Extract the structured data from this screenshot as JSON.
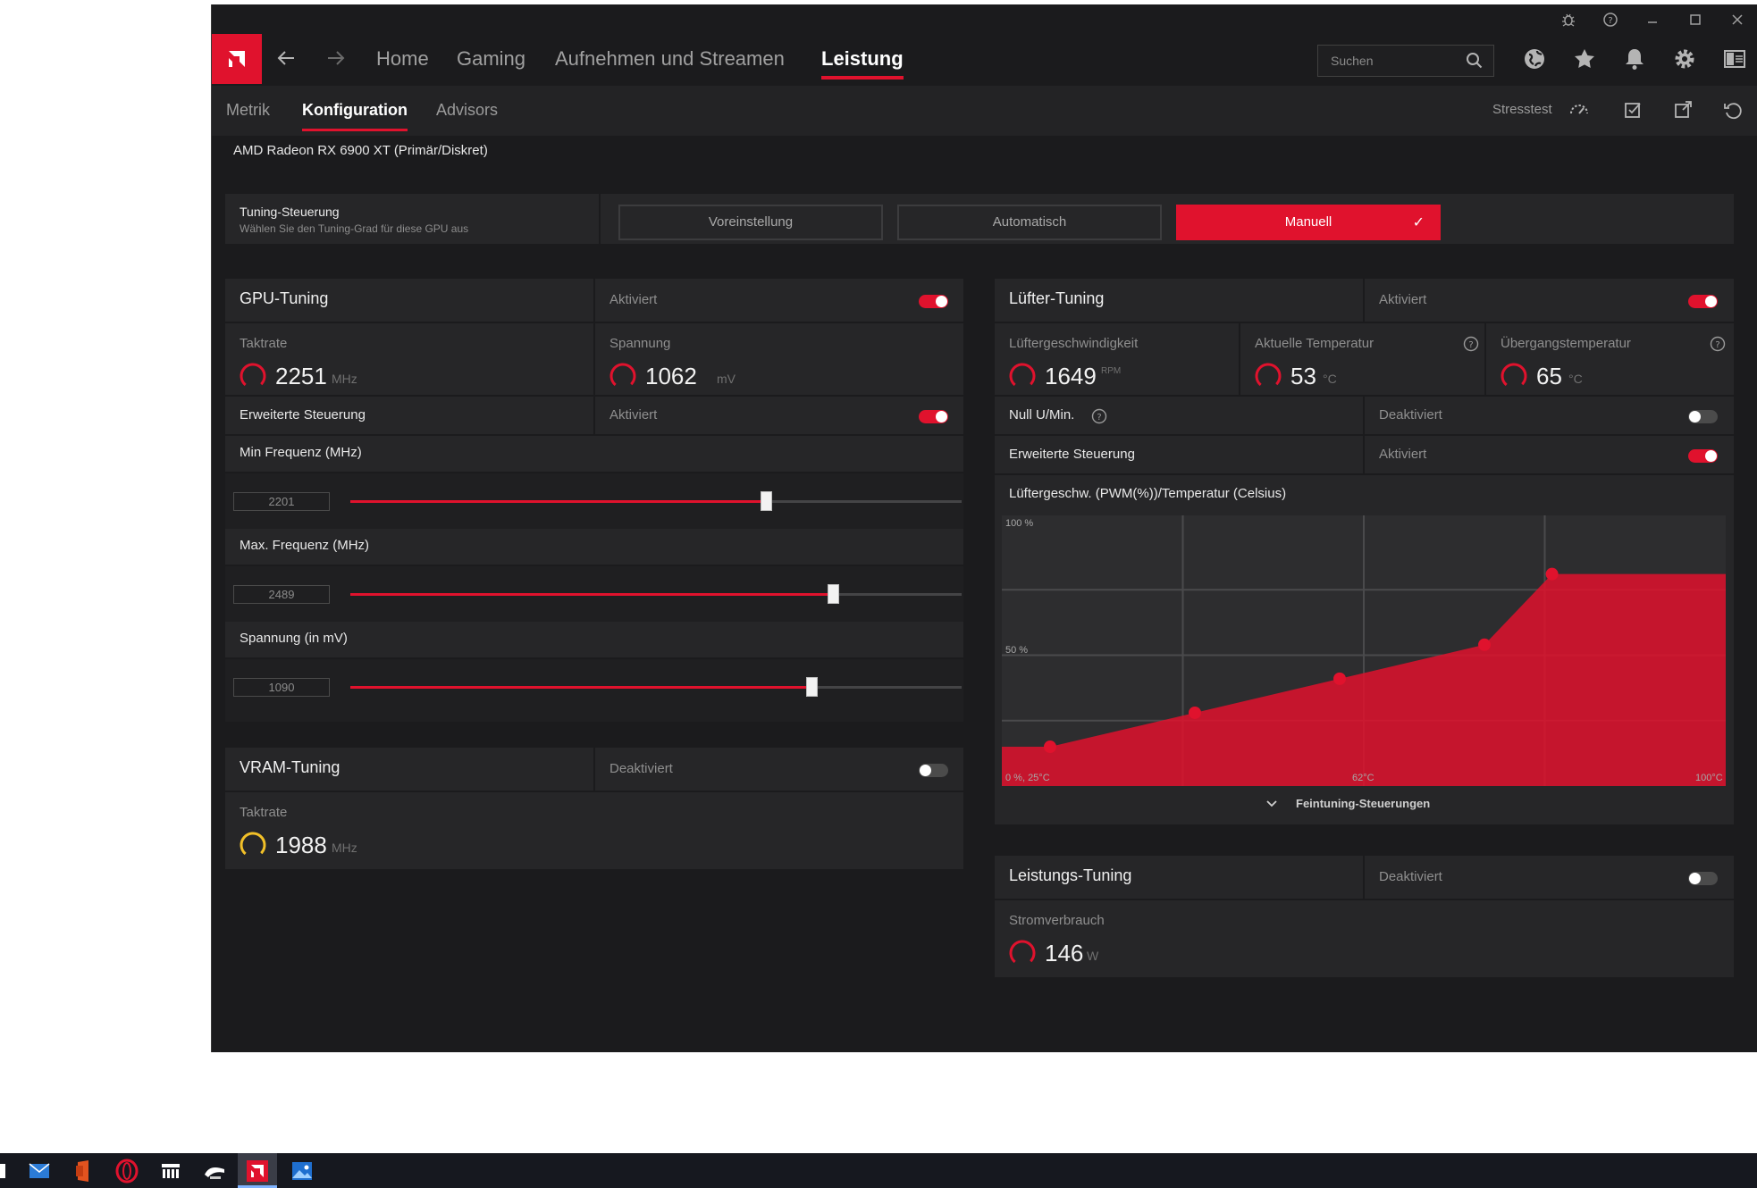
{
  "titlebar": {
    "icons": [
      "bug-icon",
      "help-icon",
      "minimize-icon",
      "maximize-icon",
      "close-icon"
    ]
  },
  "nav": {
    "items": [
      "Home",
      "Gaming",
      "Aufnehmen und Streamen",
      "Leistung"
    ],
    "active": "Leistung",
    "search_placeholder": "Suchen"
  },
  "subnav": {
    "items": [
      "Metrik",
      "Konfiguration",
      "Advisors"
    ],
    "active": "Konfiguration",
    "stresstest": "Stresstest"
  },
  "gpu_name": "AMD Radeon RX 6900 XT (Primär/Diskret)",
  "tuning": {
    "title": "Tuning-Steuerung",
    "subtitle": "Wählen Sie den Tuning-Grad für diese GPU aus",
    "buttons": [
      "Voreinstellung",
      "Automatisch",
      "Manuell"
    ],
    "selected": "Manuell"
  },
  "gpu_tuning": {
    "title": "GPU-Tuning",
    "status": "Aktiviert",
    "enabled": true,
    "clock_label": "Taktrate",
    "clock_value": "2251",
    "clock_unit": "MHz",
    "voltage_label": "Spannung",
    "voltage_value": "1062",
    "voltage_unit": "mV",
    "advanced_label": "Erweiterte Steuerung",
    "advanced_status": "Aktiviert",
    "advanced_enabled": true,
    "sliders": [
      {
        "label": "Min Frequenz (MHz)",
        "value": "2201",
        "fraction": 0.68
      },
      {
        "label": "Max. Frequenz (MHz)",
        "value": "2489",
        "fraction": 0.79
      },
      {
        "label": "Spannung (in mV)",
        "value": "1090",
        "fraction": 0.755
      }
    ]
  },
  "vram_tuning": {
    "title": "VRAM-Tuning",
    "status": "Deaktiviert",
    "enabled": false,
    "clock_label": "Taktrate",
    "clock_value": "1988",
    "clock_unit": "MHz"
  },
  "fan_tuning": {
    "title": "Lüfter-Tuning",
    "status": "Aktiviert",
    "enabled": true,
    "speed_label": "Lüftergeschwindigkeit",
    "speed_value": "1649",
    "speed_unit": "RPM",
    "temp_label": "Aktuelle Temperatur",
    "temp_value": "53",
    "temp_unit": "°C",
    "junction_label": "Übergangstemperatur",
    "junction_value": "65",
    "junction_unit": "°C",
    "zero_rpm_label": "Null U/Min.",
    "zero_rpm_status": "Deaktiviert",
    "zero_rpm_enabled": false,
    "advanced_label": "Erweiterte Steuerung",
    "advanced_status": "Aktiviert",
    "advanced_enabled": true,
    "chart_title": "Lüftergeschw. (PWM(%))/Temperatur (Celsius)",
    "fine_tuning": "Feintuning-Steuerungen"
  },
  "chart_data": {
    "type": "area",
    "title": "Lüftergeschw. (PWM(%))/Temperatur (Celsius)",
    "x_range": [
      25,
      100
    ],
    "ylim": [
      0,
      100
    ],
    "y_ticks": [
      "100 %",
      "50 %"
    ],
    "x_labels": [
      "0 %, 25°C",
      "62°C",
      "100°C"
    ],
    "grid": true,
    "series": [
      {
        "x": [
          25,
          30,
          45,
          60,
          75,
          82,
          100
        ],
        "y": [
          15,
          15,
          28,
          41,
          54,
          81,
          81
        ]
      }
    ],
    "points": [
      {
        "x": 30,
        "y": 15
      },
      {
        "x": 45,
        "y": 28
      },
      {
        "x": 60,
        "y": 41
      },
      {
        "x": 75,
        "y": 54
      },
      {
        "x": 82,
        "y": 81
      }
    ],
    "color": "#e0122d"
  },
  "power_tuning": {
    "title": "Leistungs-Tuning",
    "status": "Deaktiviert",
    "enabled": false,
    "power_label": "Stromverbrauch",
    "power_value": "146",
    "power_unit": "W"
  },
  "colors": {
    "accent": "#e0122d",
    "background": "#1b1b1d",
    "panel": "#262628",
    "gauge_yellow": "#f2c028"
  },
  "taskbar": {
    "apps": [
      "file-explorer-icon",
      "mail-icon",
      "office-icon",
      "opera-icon",
      "app-grid-icon",
      "game-icon",
      "amd-radeon-icon",
      "photos-icon"
    ],
    "active": "amd-radeon-icon"
  }
}
